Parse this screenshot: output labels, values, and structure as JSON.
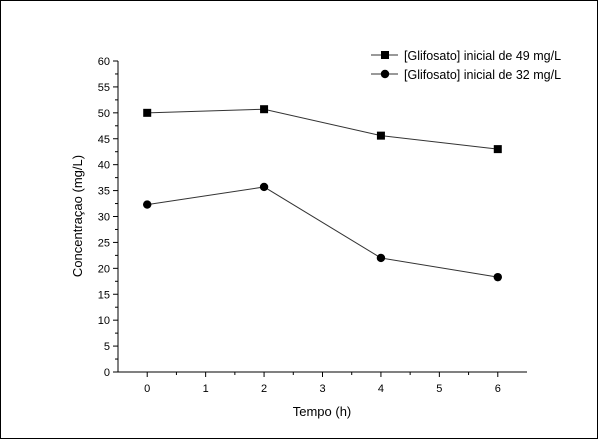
{
  "chart_data": {
    "type": "line",
    "xlabel": "Tempo (h)",
    "ylabel": "Concentraçao (mg/L)",
    "xlim": [
      -0.5,
      6.5
    ],
    "ylim": [
      0,
      60
    ],
    "x_ticks": [
      0,
      1,
      2,
      3,
      4,
      5,
      6
    ],
    "y_ticks": [
      0,
      5,
      10,
      15,
      20,
      25,
      30,
      35,
      40,
      45,
      50,
      55,
      60
    ],
    "x": [
      0,
      2,
      4,
      6
    ],
    "grid": false,
    "legend_position": "top-right",
    "series": [
      {
        "name": "[Glifosato] inicial de 49 mg/L",
        "marker": "square",
        "values": [
          50.0,
          50.7,
          45.6,
          43.0
        ]
      },
      {
        "name": "[Glifosato] inicial de 32 mg/L",
        "marker": "circle",
        "values": [
          32.3,
          35.7,
          22.0,
          18.3
        ]
      }
    ]
  },
  "colors": {
    "line": "#333333",
    "marker": "#000000",
    "axis": "#000000",
    "frame": "#000000"
  }
}
